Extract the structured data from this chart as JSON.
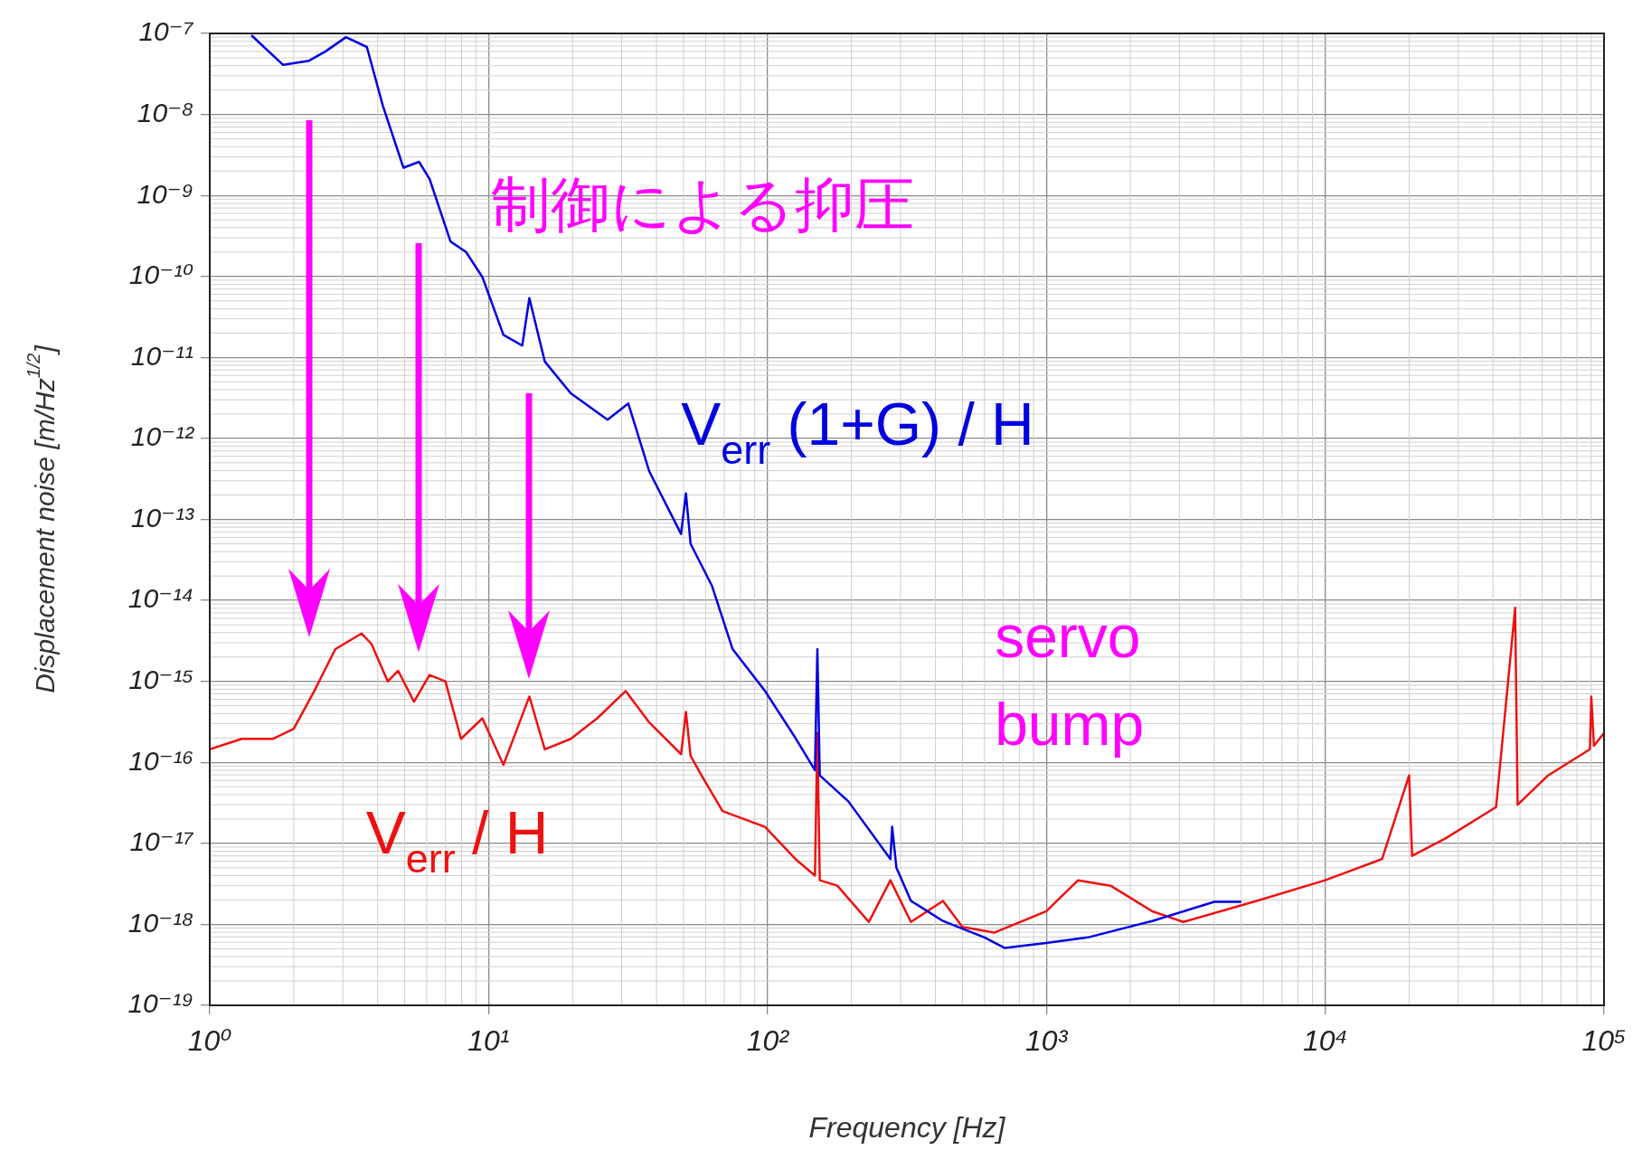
{
  "chart_data": {
    "type": "line",
    "xlabel": "Frequency [Hz]",
    "ylabel": "Displacement noise [m/Hz$^{1/2}$]",
    "xlim": [
      1,
      100000
    ],
    "ylim": [
      1e-19,
      1e-07
    ],
    "log": "xy",
    "grid": true,
    "legend": false,
    "marker": "none",
    "line_style": "solid",
    "xticks": [
      {
        "value": 1,
        "label": "10⁰"
      },
      {
        "value": 10,
        "label": "10¹"
      },
      {
        "value": 100,
        "label": "10²"
      },
      {
        "value": 1000,
        "label": "10³"
      },
      {
        "value": 10000,
        "label": "10⁴"
      },
      {
        "value": 100000,
        "label": "10⁵"
      }
    ],
    "yticks": [
      {
        "value": 1e-19,
        "label": "10⁻¹⁹"
      },
      {
        "value": 1e-18,
        "label": "10⁻¹⁸"
      },
      {
        "value": 1e-17,
        "label": "10⁻¹⁷"
      },
      {
        "value": 1e-16,
        "label": "10⁻¹⁶"
      },
      {
        "value": 1e-15,
        "label": "10⁻¹⁵"
      },
      {
        "value": 1e-14,
        "label": "10⁻¹⁴"
      },
      {
        "value": 1e-13,
        "label": "10⁻¹³"
      },
      {
        "value": 1e-12,
        "label": "10⁻¹²"
      },
      {
        "value": 1e-11,
        "label": "10⁻¹¹"
      },
      {
        "value": 1e-10,
        "label": "10⁻¹⁰"
      },
      {
        "value": 1e-09,
        "label": "10⁻⁹"
      },
      {
        "value": 1e-08,
        "label": "10⁻⁸"
      },
      {
        "value": 1e-07,
        "label": "10⁻⁷"
      }
    ],
    "annotations": [
      "制御による抑圧",
      "servo bump"
    ],
    "series": [
      {
        "name": "V$_{err}$ (1+G) / H",
        "color": "#0000e0",
        "x": [
          1.41,
          1.83,
          2.27,
          2.6,
          3.08,
          3.66,
          4.17,
          4.95,
          5.63,
          6.14,
          7.3,
          8.3,
          9.5,
          11.3,
          13.2,
          14,
          15.9,
          19.7,
          26.7,
          31.7,
          37.7,
          49,
          51,
          53,
          63.3,
          75,
          98,
          126,
          148,
          151,
          154,
          195,
          276,
          280,
          290,
          327,
          426,
          600,
          710,
          1000,
          1410,
          2400,
          4000,
          5000
        ],
        "values": [
          9.5e-08,
          4.1e-08,
          4.6e-08,
          6e-08,
          9e-08,
          6.8e-08,
          1.3e-08,
          2.2e-09,
          2.6e-09,
          1.6e-09,
          2.7e-10,
          2e-10,
          9.8e-11,
          1.9e-11,
          1.4e-11,
          5.4e-11,
          8.9e-12,
          3.6e-12,
          1.7e-12,
          2.7e-12,
          3.9e-13,
          6.6e-14,
          2.1e-13,
          5e-14,
          1.5e-14,
          2.5e-15,
          7.6e-16,
          2e-16,
          8e-17,
          2.5e-15,
          6.9e-17,
          3.3e-17,
          6.4e-18,
          1.6e-17,
          5e-18,
          1.95e-18,
          1.1e-18,
          6.9e-19,
          5.1e-19,
          5.9e-19,
          6.9e-19,
          1.1e-18,
          1.9e-18,
          1.9e-18
        ]
      },
      {
        "name": "V$_{err}$ / H",
        "color": "#ee1111",
        "x": [
          1,
          1.3,
          1.68,
          2,
          2.37,
          2.82,
          3.5,
          3.8,
          4.35,
          4.74,
          5.4,
          6.14,
          7,
          7.96,
          9.5,
          11.3,
          14,
          15.9,
          19.7,
          24.5,
          31,
          37.7,
          49,
          51,
          53,
          58,
          69,
          98,
          126,
          148,
          151,
          154,
          178,
          231,
          276,
          327,
          426,
          500,
          650,
          1000,
          1300,
          1700,
          2400,
          3100,
          5680,
          10000,
          16000,
          20000,
          20500,
          27000,
          41000,
          48000,
          49000,
          63000,
          89000,
          90000,
          92000,
          100000
        ],
        "values": [
          1.45e-16,
          1.95e-16,
          1.95e-16,
          2.6e-16,
          7.6e-16,
          2.5e-15,
          3.9e-15,
          2.9e-15,
          1e-15,
          1.35e-15,
          5.6e-16,
          1.2e-15,
          1e-15,
          1.95e-16,
          3.5e-16,
          9.3e-17,
          6.5e-16,
          1.45e-16,
          1.95e-16,
          3.5e-16,
          7.6e-16,
          3.1e-16,
          1.26e-16,
          4.2e-16,
          1.2e-16,
          6.9e-17,
          2.5e-17,
          1.6e-17,
          6.4e-18,
          4e-18,
          2.3e-16,
          3.5e-18,
          3e-18,
          1.07e-18,
          3.5e-18,
          1.07e-18,
          1.95e-18,
          9.3e-19,
          7.9e-19,
          1.45e-18,
          3.5e-18,
          3e-18,
          1.45e-18,
          1.07e-18,
          1.95e-18,
          3.5e-18,
          6.4e-18,
          6.9e-17,
          7e-18,
          1.15e-17,
          2.8e-17,
          8.1e-15,
          3e-17,
          6.9e-17,
          1.45e-16,
          6.5e-16,
          1.6e-16,
          2.3e-16
        ]
      }
    ]
  }
}
